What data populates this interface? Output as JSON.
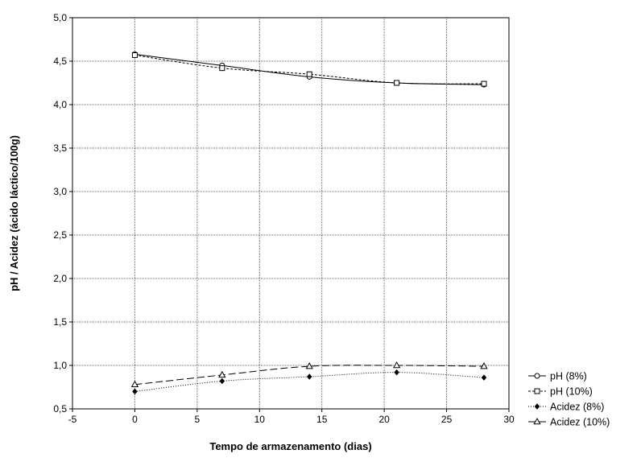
{
  "chart_data": {
    "type": "line",
    "xlabel": "Tempo de armazenamento (dias)",
    "ylabel": "pH / Acidez (ácido láctico/100g)",
    "xlim": [
      -5,
      30
    ],
    "ylim": [
      0.5,
      5.0
    ],
    "xticks": [
      "-5",
      "0",
      "5",
      "10",
      "15",
      "20",
      "25",
      "30"
    ],
    "yticks": [
      "0,5",
      "1,0",
      "1,5",
      "2,0",
      "2,5",
      "3,0",
      "3,5",
      "4,0",
      "4,5",
      "5,0"
    ],
    "grid": true,
    "legend_position": "bottom-right outside",
    "x": [
      0,
      7,
      14,
      21,
      28
    ],
    "series": [
      {
        "name": "pH (8%)",
        "values": [
          4.58,
          4.45,
          4.32,
          4.25,
          4.23
        ],
        "marker": "circle",
        "dash": "solid"
      },
      {
        "name": "pH (10%)",
        "values": [
          4.57,
          4.42,
          4.35,
          4.25,
          4.24
        ],
        "marker": "square",
        "dash": "short-dash"
      },
      {
        "name": "Acidez (8%)",
        "values": [
          0.7,
          0.82,
          0.87,
          0.92,
          0.86
        ],
        "marker": "diamond-filled",
        "dash": "dotted"
      },
      {
        "name": "Acidez (10%)",
        "values": [
          0.78,
          0.89,
          0.99,
          1.0,
          0.99
        ],
        "marker": "triangle",
        "dash": "long-dash"
      }
    ]
  }
}
